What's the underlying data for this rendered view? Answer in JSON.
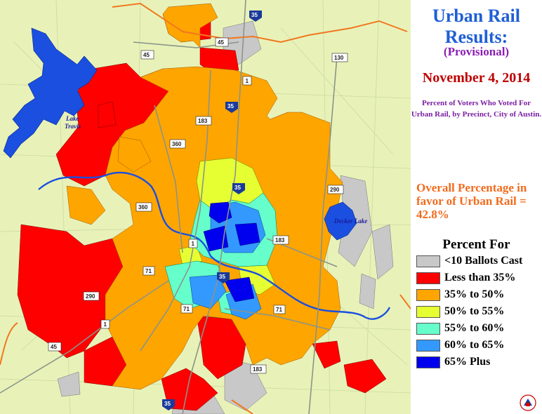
{
  "title": "Urban Rail Results:",
  "subtitle": "(Provisional)",
  "date": "November 4, 2014",
  "description": "Percent of Voters Who Voted For Urban Rail, by Precinct, City of Austin.",
  "overall": "Overall Percentage in favor of Urban Rail = 42.8%",
  "legend": {
    "title": "Percent For",
    "items": [
      {
        "label": "<10 Ballots Cast",
        "color": "#c8c8c8"
      },
      {
        "label": "Less than 35%",
        "color": "#ff0000"
      },
      {
        "label": "35% to 50%",
        "color": "#ffa500"
      },
      {
        "label": "50% to 55%",
        "color": "#e6ff33"
      },
      {
        "label": "55% to 60%",
        "color": "#66ffcc"
      },
      {
        "label": "60% to 65%",
        "color": "#3399ff"
      },
      {
        "label": "65% Plus",
        "color": "#0000ee"
      }
    ]
  },
  "map": {
    "water_labels": [
      "Lake Travis",
      "Decker Lake"
    ],
    "highway_shields": [
      "35",
      "45",
      "1",
      "183",
      "360",
      "290",
      "71",
      "130"
    ],
    "colors": {
      "background": "#e8f2b8",
      "water": "#1a4fe0",
      "boundary": "#f07820",
      "roads": "#9aa89a"
    }
  }
}
